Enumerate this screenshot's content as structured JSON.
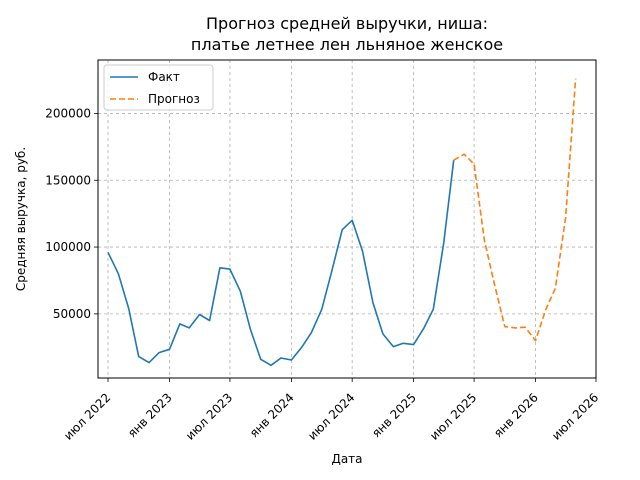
{
  "chart_data": {
    "type": "line",
    "title_lines": [
      "Прогноз средней выручки, ниша:",
      "платье летнее лен льняное женское"
    ],
    "xlabel": "Дата",
    "ylabel": "Средняя выручка, руб.",
    "x_range": [
      "2022-06-01",
      "2026-07-01"
    ],
    "ylim": [
      2000,
      240000
    ],
    "x_ticks": [
      {
        "date": "2022-07-01",
        "label": "июл 2022"
      },
      {
        "date": "2023-01-01",
        "label": "янв 2023"
      },
      {
        "date": "2023-07-01",
        "label": "июл 2023"
      },
      {
        "date": "2024-01-01",
        "label": "янв 2024"
      },
      {
        "date": "2024-07-01",
        "label": "июл 2024"
      },
      {
        "date": "2025-01-01",
        "label": "янв 2025"
      },
      {
        "date": "2025-07-01",
        "label": "июл 2025"
      },
      {
        "date": "2026-01-01",
        "label": "янв 2026"
      },
      {
        "date": "2026-07-01",
        "label": "июл 2026"
      }
    ],
    "y_ticks": [
      {
        "value": 50000,
        "label": "50000"
      },
      {
        "value": 100000,
        "label": "100000"
      },
      {
        "value": 150000,
        "label": "150000"
      },
      {
        "value": 200000,
        "label": "200000"
      }
    ],
    "grid": true,
    "legend_position": "top-left",
    "series": [
      {
        "name": "Факт",
        "color": "#1f77b4",
        "style": "solid",
        "points": [
          [
            "2022-07-01",
            96000
          ],
          [
            "2022-08-01",
            80000
          ],
          [
            "2022-09-01",
            54000
          ],
          [
            "2022-10-01",
            18000
          ],
          [
            "2022-11-01",
            13500
          ],
          [
            "2022-12-01",
            21000
          ],
          [
            "2023-01-01",
            23500
          ],
          [
            "2023-02-01",
            42500
          ],
          [
            "2023-03-01",
            39500
          ],
          [
            "2023-04-01",
            49500
          ],
          [
            "2023-05-01",
            45000
          ],
          [
            "2023-06-01",
            84500
          ],
          [
            "2023-07-01",
            83500
          ],
          [
            "2023-08-01",
            67000
          ],
          [
            "2023-09-01",
            38000
          ],
          [
            "2023-10-01",
            16000
          ],
          [
            "2023-11-01",
            11500
          ],
          [
            "2023-12-01",
            17000
          ],
          [
            "2024-01-01",
            15500
          ],
          [
            "2024-02-01",
            25000
          ],
          [
            "2024-03-01",
            36000
          ],
          [
            "2024-04-01",
            53500
          ],
          [
            "2024-05-01",
            82000
          ],
          [
            "2024-06-01",
            113000
          ],
          [
            "2024-07-01",
            120000
          ],
          [
            "2024-08-01",
            97000
          ],
          [
            "2024-09-01",
            58500
          ],
          [
            "2024-10-01",
            35000
          ],
          [
            "2024-11-01",
            25500
          ],
          [
            "2024-12-01",
            28000
          ],
          [
            "2025-01-01",
            27000
          ],
          [
            "2025-02-01",
            39500
          ],
          [
            "2025-03-01",
            53500
          ],
          [
            "2025-04-01",
            103000
          ],
          [
            "2025-05-01",
            165000
          ]
        ]
      },
      {
        "name": "Прогноз",
        "color": "#ff7f0e",
        "style": "dashed",
        "points": [
          [
            "2025-05-01",
            165000
          ],
          [
            "2025-06-01",
            169500
          ],
          [
            "2025-07-01",
            162000
          ],
          [
            "2025-08-01",
            105000
          ],
          [
            "2025-09-01",
            71000
          ],
          [
            "2025-10-01",
            40500
          ],
          [
            "2025-11-01",
            39500
          ],
          [
            "2025-12-01",
            40000
          ],
          [
            "2026-01-01",
            30000
          ],
          [
            "2026-02-01",
            53500
          ],
          [
            "2026-03-01",
            69000
          ],
          [
            "2026-04-01",
            122000
          ],
          [
            "2026-05-01",
            226000
          ]
        ]
      }
    ]
  }
}
